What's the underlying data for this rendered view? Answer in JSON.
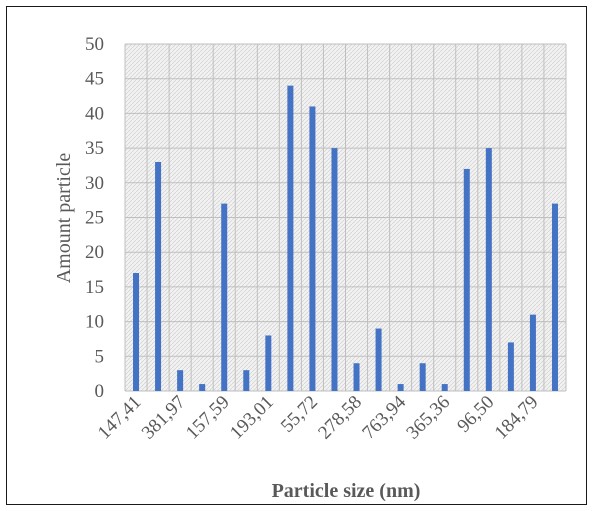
{
  "chart_data": {
    "type": "bar",
    "xlabel": "Particle size (nm)",
    "ylabel": "Amount particle",
    "ylim": [
      0,
      50
    ],
    "y_ticks": [
      0,
      5,
      10,
      15,
      20,
      25,
      30,
      35,
      40,
      45,
      50
    ],
    "grid": true,
    "legend": "none",
    "categories": [
      "147,41",
      "",
      "381,97",
      "",
      "157,59",
      "",
      "193,01",
      "",
      "55,72",
      "",
      "278,58",
      "",
      "763,94",
      "",
      "365,36",
      "",
      "96,50",
      "",
      "184,79",
      ""
    ],
    "values": [
      17,
      33,
      3,
      1,
      27,
      3,
      8,
      44,
      41,
      35,
      4,
      9,
      1,
      4,
      1,
      32,
      35,
      7,
      11,
      27
    ],
    "bar_color": "#4472c4",
    "grid_color": "#bfbfbf",
    "text_color": "#595959"
  }
}
